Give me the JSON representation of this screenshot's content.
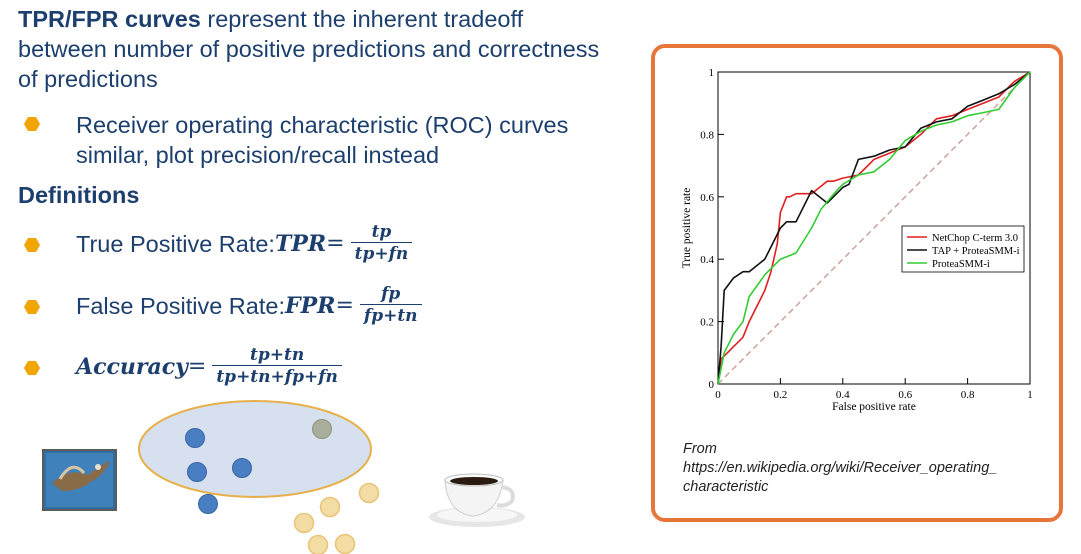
{
  "intro": {
    "bold": "TPR/FPR curves",
    "rest": " represent the inherent tradeoff between number of positive predictions and correctness of predictions"
  },
  "bullet_roc": "Receiver operating characteristic (ROC) curves similar, plot precision/recall instead",
  "definitions_heading": "Definitions",
  "tpr": {
    "label": "True Positive Rate: ",
    "symbol": "TPR",
    "equals": " =",
    "num": "tp",
    "den": "tp+fn"
  },
  "fpr": {
    "label": "False Positive Rate: ",
    "symbol": "FPR",
    "equals": " =",
    "num": "fp",
    "den": "fp+tn"
  },
  "accuracy": {
    "symbol": "Accuracy",
    "equals": " =",
    "num": "tp+tn",
    "den": "tp+tn+fp+fn"
  },
  "caption": {
    "from": "From",
    "url": "https://en.wikipedia.org/wiki/Receiver_operating_ characteristic"
  },
  "colors": {
    "text": "#1c3f6e",
    "bullet": "#f0a500",
    "frame": "#e8763a",
    "ellipse_fill": "#d6e0ee",
    "ellipse_stroke": "#e7b04a",
    "blue_dot": "#4a7ec3",
    "gray_dot": "#a8ad9c",
    "yellow_dot": "#f4dca5"
  },
  "icons": [
    "bullet-hexagon-icon",
    "bird-photo-icon",
    "coffee-cup-icon"
  ],
  "chart_data": {
    "type": "line",
    "xlabel": "False positive rate",
    "ylabel": "True positive rate",
    "xlim": [
      0,
      1
    ],
    "ylim": [
      0,
      1
    ],
    "x_ticks": [
      0,
      0.2,
      0.4,
      0.6,
      0.8,
      1
    ],
    "y_ticks": [
      0,
      0.2,
      0.4,
      0.6,
      0.8,
      1
    ],
    "x_tick_labels": [
      "0",
      "0.2",
      "0.4",
      "0.6",
      "0.8",
      "1"
    ],
    "y_tick_labels": [
      "0",
      "0.2",
      "0.4",
      "0.6",
      "0.8",
      "1"
    ],
    "grid": false,
    "legend": "right",
    "diagonal": {
      "x": [
        0,
        1
      ],
      "y": [
        0,
        1
      ],
      "color": "#c9a49b",
      "dashed": true
    },
    "series": [
      {
        "name": "NetChop C-term 3.0",
        "color": "#e02020",
        "x": [
          0,
          0.01,
          0.03,
          0.05,
          0.08,
          0.1,
          0.13,
          0.15,
          0.17,
          0.19,
          0.2,
          0.22,
          0.23,
          0.25,
          0.3,
          0.35,
          0.37,
          0.4,
          0.45,
          0.5,
          0.55,
          0.6,
          0.65,
          0.7,
          0.75,
          0.8,
          0.85,
          0.9,
          0.95,
          1
        ],
        "y": [
          0,
          0.08,
          0.1,
          0.12,
          0.15,
          0.2,
          0.26,
          0.3,
          0.36,
          0.45,
          0.55,
          0.6,
          0.6,
          0.61,
          0.61,
          0.65,
          0.65,
          0.66,
          0.67,
          0.72,
          0.74,
          0.76,
          0.8,
          0.85,
          0.86,
          0.88,
          0.9,
          0.92,
          0.97,
          1
        ]
      },
      {
        "name": "TAP + ProteaSMM-i",
        "color": "#111111",
        "x": [
          0,
          0.01,
          0.02,
          0.05,
          0.08,
          0.1,
          0.15,
          0.18,
          0.2,
          0.22,
          0.25,
          0.3,
          0.35,
          0.4,
          0.42,
          0.45,
          0.5,
          0.55,
          0.6,
          0.65,
          0.7,
          0.75,
          0.8,
          0.85,
          0.9,
          0.95,
          1
        ],
        "y": [
          0,
          0.12,
          0.3,
          0.34,
          0.36,
          0.36,
          0.4,
          0.46,
          0.5,
          0.52,
          0.52,
          0.62,
          0.58,
          0.63,
          0.64,
          0.72,
          0.73,
          0.75,
          0.76,
          0.82,
          0.84,
          0.85,
          0.89,
          0.91,
          0.93,
          0.96,
          1
        ]
      },
      {
        "name": "ProteaSMM-i",
        "color": "#33cc33",
        "x": [
          0,
          0.02,
          0.05,
          0.08,
          0.1,
          0.15,
          0.2,
          0.25,
          0.3,
          0.33,
          0.38,
          0.4,
          0.45,
          0.5,
          0.55,
          0.6,
          0.65,
          0.7,
          0.75,
          0.8,
          0.85,
          0.9,
          0.95,
          1
        ],
        "y": [
          0,
          0.1,
          0.16,
          0.2,
          0.28,
          0.35,
          0.4,
          0.42,
          0.5,
          0.56,
          0.62,
          0.64,
          0.67,
          0.68,
          0.72,
          0.78,
          0.81,
          0.83,
          0.84,
          0.86,
          0.87,
          0.88,
          0.95,
          1
        ]
      }
    ]
  }
}
